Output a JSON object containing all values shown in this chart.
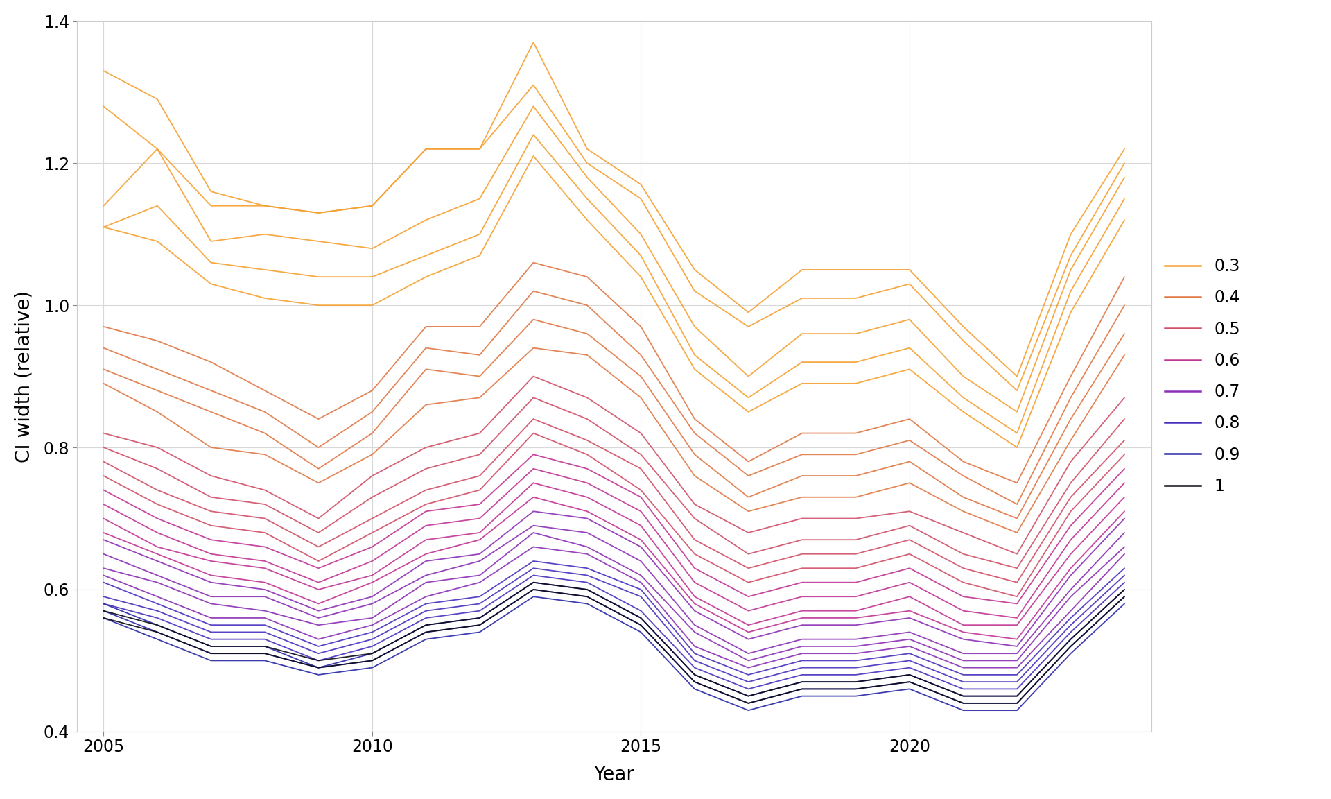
{
  "years": [
    2005,
    2006,
    2007,
    2008,
    2009,
    2010,
    2011,
    2012,
    2013,
    2014,
    2015,
    2016,
    2017,
    2018,
    2019,
    2020,
    2021,
    2022,
    2023,
    2024
  ],
  "group_colors": {
    "0.3": "#F5A030",
    "0.4": "#E07845",
    "0.5": "#D05068",
    "0.6": "#C03595",
    "0.7": "#8B30B5",
    "0.8": "#4830BE",
    "0.9": "#2828A8",
    "1": "#0A0A18"
  },
  "series": {
    "0.3": [
      [
        1.33,
        1.29,
        1.16,
        1.14,
        1.13,
        1.14,
        1.22,
        1.22,
        1.37,
        1.22,
        1.17,
        1.05,
        0.99,
        1.05,
        1.05,
        1.05,
        0.97,
        0.9,
        1.1,
        1.22
      ],
      [
        1.28,
        1.22,
        1.14,
        1.14,
        1.13,
        1.14,
        1.22,
        1.22,
        1.31,
        1.2,
        1.15,
        1.02,
        0.97,
        1.01,
        1.01,
        1.03,
        0.95,
        0.88,
        1.07,
        1.2
      ],
      [
        1.14,
        1.22,
        1.09,
        1.1,
        1.09,
        1.08,
        1.12,
        1.15,
        1.28,
        1.18,
        1.1,
        0.97,
        0.9,
        0.96,
        0.96,
        0.98,
        0.9,
        0.85,
        1.05,
        1.18
      ],
      [
        1.11,
        1.14,
        1.06,
        1.05,
        1.04,
        1.04,
        1.07,
        1.1,
        1.24,
        1.15,
        1.07,
        0.93,
        0.87,
        0.92,
        0.92,
        0.94,
        0.87,
        0.82,
        1.02,
        1.15
      ],
      [
        1.11,
        1.09,
        1.03,
        1.01,
        1.0,
        1.0,
        1.04,
        1.07,
        1.21,
        1.12,
        1.04,
        0.91,
        0.85,
        0.89,
        0.89,
        0.91,
        0.85,
        0.8,
        0.99,
        1.12
      ]
    ],
    "0.4": [
      [
        0.97,
        0.95,
        0.92,
        0.88,
        0.84,
        0.88,
        0.97,
        0.97,
        1.06,
        1.04,
        0.97,
        0.84,
        0.78,
        0.82,
        0.82,
        0.84,
        0.78,
        0.75,
        0.9,
        1.04
      ],
      [
        0.94,
        0.91,
        0.88,
        0.85,
        0.8,
        0.85,
        0.94,
        0.93,
        1.02,
        1.0,
        0.93,
        0.82,
        0.76,
        0.79,
        0.79,
        0.81,
        0.76,
        0.72,
        0.87,
        1.0
      ],
      [
        0.91,
        0.88,
        0.85,
        0.82,
        0.77,
        0.82,
        0.91,
        0.9,
        0.98,
        0.96,
        0.9,
        0.79,
        0.73,
        0.76,
        0.76,
        0.78,
        0.73,
        0.7,
        0.84,
        0.96
      ],
      [
        0.89,
        0.85,
        0.8,
        0.79,
        0.75,
        0.79,
        0.86,
        0.87,
        0.94,
        0.93,
        0.87,
        0.76,
        0.71,
        0.73,
        0.73,
        0.75,
        0.71,
        0.68,
        0.81,
        0.93
      ]
    ],
    "0.5": [
      [
        0.82,
        0.8,
        0.76,
        0.74,
        0.7,
        0.76,
        0.8,
        0.82,
        0.9,
        0.87,
        0.82,
        0.72,
        0.68,
        0.7,
        0.7,
        0.71,
        0.68,
        0.65,
        0.78,
        0.87
      ],
      [
        0.8,
        0.77,
        0.73,
        0.72,
        0.68,
        0.73,
        0.77,
        0.79,
        0.87,
        0.84,
        0.79,
        0.7,
        0.65,
        0.67,
        0.67,
        0.69,
        0.65,
        0.63,
        0.75,
        0.84
      ],
      [
        0.78,
        0.74,
        0.71,
        0.7,
        0.66,
        0.7,
        0.74,
        0.76,
        0.84,
        0.81,
        0.77,
        0.67,
        0.63,
        0.65,
        0.65,
        0.67,
        0.63,
        0.61,
        0.73,
        0.81
      ],
      [
        0.76,
        0.72,
        0.69,
        0.68,
        0.64,
        0.68,
        0.72,
        0.74,
        0.82,
        0.79,
        0.74,
        0.65,
        0.61,
        0.63,
        0.63,
        0.65,
        0.61,
        0.59,
        0.71,
        0.79
      ]
    ],
    "0.6": [
      [
        0.74,
        0.7,
        0.67,
        0.66,
        0.63,
        0.66,
        0.71,
        0.72,
        0.79,
        0.77,
        0.73,
        0.63,
        0.59,
        0.61,
        0.61,
        0.63,
        0.59,
        0.58,
        0.69,
        0.77
      ],
      [
        0.72,
        0.68,
        0.65,
        0.64,
        0.61,
        0.64,
        0.69,
        0.7,
        0.77,
        0.75,
        0.71,
        0.61,
        0.57,
        0.59,
        0.59,
        0.61,
        0.57,
        0.56,
        0.67,
        0.75
      ],
      [
        0.7,
        0.66,
        0.64,
        0.63,
        0.6,
        0.62,
        0.67,
        0.68,
        0.75,
        0.73,
        0.69,
        0.59,
        0.55,
        0.57,
        0.57,
        0.59,
        0.55,
        0.55,
        0.65,
        0.73
      ],
      [
        0.68,
        0.65,
        0.62,
        0.61,
        0.58,
        0.61,
        0.65,
        0.67,
        0.73,
        0.71,
        0.67,
        0.58,
        0.54,
        0.56,
        0.56,
        0.57,
        0.54,
        0.53,
        0.63,
        0.71
      ]
    ],
    "0.7": [
      [
        0.67,
        0.64,
        0.61,
        0.6,
        0.57,
        0.59,
        0.64,
        0.65,
        0.71,
        0.7,
        0.66,
        0.57,
        0.53,
        0.55,
        0.55,
        0.56,
        0.53,
        0.52,
        0.62,
        0.7
      ],
      [
        0.65,
        0.62,
        0.59,
        0.59,
        0.56,
        0.58,
        0.62,
        0.64,
        0.69,
        0.68,
        0.64,
        0.55,
        0.51,
        0.53,
        0.53,
        0.54,
        0.51,
        0.51,
        0.6,
        0.68
      ],
      [
        0.63,
        0.61,
        0.58,
        0.57,
        0.55,
        0.56,
        0.61,
        0.62,
        0.68,
        0.66,
        0.62,
        0.54,
        0.5,
        0.52,
        0.52,
        0.53,
        0.5,
        0.5,
        0.59,
        0.66
      ],
      [
        0.62,
        0.59,
        0.56,
        0.56,
        0.53,
        0.55,
        0.59,
        0.61,
        0.66,
        0.65,
        0.61,
        0.52,
        0.49,
        0.51,
        0.51,
        0.52,
        0.49,
        0.49,
        0.57,
        0.65
      ]
    ],
    "0.8": [
      [
        0.61,
        0.58,
        0.55,
        0.55,
        0.52,
        0.54,
        0.58,
        0.59,
        0.64,
        0.63,
        0.6,
        0.51,
        0.48,
        0.5,
        0.5,
        0.51,
        0.48,
        0.48,
        0.56,
        0.63
      ],
      [
        0.59,
        0.57,
        0.54,
        0.54,
        0.51,
        0.53,
        0.57,
        0.58,
        0.63,
        0.62,
        0.59,
        0.5,
        0.47,
        0.49,
        0.49,
        0.5,
        0.47,
        0.47,
        0.55,
        0.62
      ],
      [
        0.58,
        0.56,
        0.53,
        0.53,
        0.5,
        0.52,
        0.56,
        0.57,
        0.62,
        0.61,
        0.57,
        0.49,
        0.46,
        0.48,
        0.48,
        0.49,
        0.46,
        0.46,
        0.54,
        0.61
      ]
    ],
    "0.9": [
      [
        0.58,
        0.55,
        0.52,
        0.52,
        0.49,
        0.51,
        0.55,
        0.56,
        0.61,
        0.6,
        0.56,
        0.48,
        0.45,
        0.47,
        0.47,
        0.48,
        0.45,
        0.45,
        0.53,
        0.6
      ],
      [
        0.57,
        0.54,
        0.51,
        0.51,
        0.49,
        0.5,
        0.54,
        0.55,
        0.6,
        0.59,
        0.55,
        0.47,
        0.44,
        0.46,
        0.46,
        0.47,
        0.44,
        0.44,
        0.52,
        0.59
      ],
      [
        0.56,
        0.53,
        0.5,
        0.5,
        0.48,
        0.49,
        0.53,
        0.54,
        0.59,
        0.58,
        0.54,
        0.46,
        0.43,
        0.45,
        0.45,
        0.46,
        0.43,
        0.43,
        0.51,
        0.58
      ]
    ],
    "1": [
      [
        0.57,
        0.55,
        0.52,
        0.52,
        0.5,
        0.51,
        0.55,
        0.56,
        0.61,
        0.6,
        0.56,
        0.48,
        0.45,
        0.47,
        0.47,
        0.48,
        0.45,
        0.45,
        0.53,
        0.6
      ],
      [
        0.56,
        0.54,
        0.51,
        0.51,
        0.49,
        0.5,
        0.54,
        0.55,
        0.6,
        0.59,
        0.55,
        0.47,
        0.44,
        0.46,
        0.46,
        0.47,
        0.44,
        0.44,
        0.52,
        0.59
      ]
    ]
  },
  "xlabel": "Year",
  "ylabel": "CI width (relative)",
  "xlim": [
    2004.5,
    2024.5
  ],
  "ylim": [
    0.4,
    1.4
  ],
  "xticks": [
    2005,
    2010,
    2015,
    2020
  ],
  "yticks": [
    0.4,
    0.6,
    0.8,
    1.0,
    1.2,
    1.4
  ],
  "legend_labels": [
    "0.3",
    "0.4",
    "0.5",
    "0.6",
    "0.7",
    "0.8",
    "0.9",
    "1"
  ],
  "background_color": "#ffffff",
  "grid_color": "#d8d8d8",
  "axis_label_fontsize": 20,
  "tick_fontsize": 17,
  "legend_fontsize": 17
}
